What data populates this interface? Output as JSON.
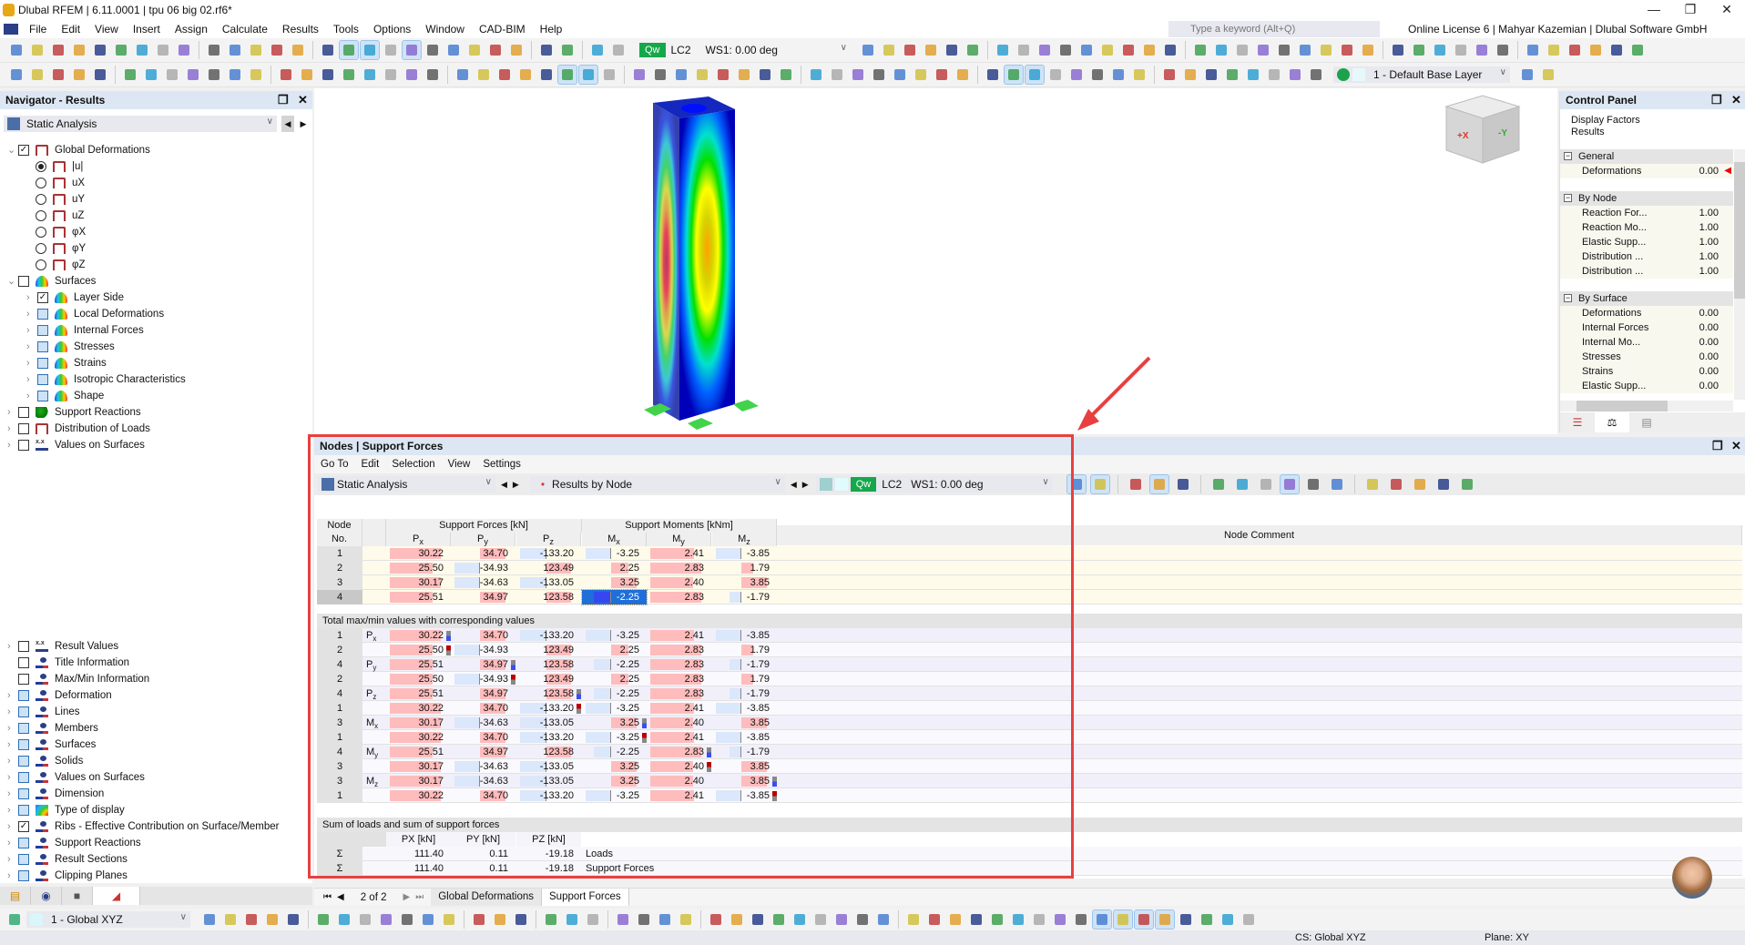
{
  "app": {
    "title": "Dlubal RFEM | 6.11.0001 | tpu 06 big 02.rf6*",
    "search_placeholder": "Type a keyword (Alt+Q)",
    "license": "Online License 6 | Mahyar Kazemian | Dlubal Software GmbH"
  },
  "menu": [
    "File",
    "Edit",
    "View",
    "Insert",
    "Assign",
    "Calculate",
    "Results",
    "Tools",
    "Options",
    "Window",
    "CAD-BIM",
    "Help"
  ],
  "toolbar": {
    "load_tag": "Qw",
    "load_case": "LC2",
    "load_combo": "WS1: 0.00 deg",
    "layer": "1 - Default Base Layer",
    "colors": {
      "qw": "#14a84a",
      "accent": "#1e6fd9",
      "highlight_frame": "#e84040"
    }
  },
  "navigator": {
    "title": "Navigator - Results",
    "analysis": "Static Analysis",
    "items": [
      {
        "label": "Global Deformations",
        "level": 0,
        "exp": "open",
        "check": "checked",
        "icon": "frame"
      },
      {
        "label": "|u|",
        "level": 1,
        "check": "radio-on",
        "icon": "frame"
      },
      {
        "label": "uX",
        "level": 1,
        "check": "radio-off",
        "icon": "frame"
      },
      {
        "label": "uY",
        "level": 1,
        "check": "radio-off",
        "icon": "frame"
      },
      {
        "label": "uZ",
        "level": 1,
        "check": "radio-off",
        "icon": "frame"
      },
      {
        "label": "φX",
        "level": 1,
        "check": "radio-off",
        "icon": "frame"
      },
      {
        "label": "φY",
        "level": 1,
        "check": "radio-off",
        "icon": "frame"
      },
      {
        "label": "φZ",
        "level": 1,
        "check": "radio-off",
        "icon": "frame"
      },
      {
        "label": "Surfaces",
        "level": 0,
        "exp": "open",
        "check": "unchecked",
        "icon": "surf"
      },
      {
        "label": "Layer Side",
        "level": 2,
        "exp": "closed",
        "check": "checked",
        "icon": "surf"
      },
      {
        "label": "Local Deformations",
        "level": 2,
        "exp": "closed",
        "check": "partial",
        "icon": "surf"
      },
      {
        "label": "Internal Forces",
        "level": 2,
        "exp": "closed",
        "check": "partial",
        "icon": "surf"
      },
      {
        "label": "Stresses",
        "level": 2,
        "exp": "closed",
        "check": "partial",
        "icon": "surf"
      },
      {
        "label": "Strains",
        "level": 2,
        "exp": "closed",
        "check": "partial",
        "icon": "surf"
      },
      {
        "label": "Isotropic Characteristics",
        "level": 2,
        "exp": "closed",
        "check": "partial",
        "icon": "surf"
      },
      {
        "label": "Shape",
        "level": 2,
        "exp": "closed",
        "check": "partial",
        "icon": "surf"
      },
      {
        "label": "Support Reactions",
        "level": 0,
        "exp": "closed",
        "check": "unchecked",
        "icon": "sup"
      },
      {
        "label": "Distribution of Loads",
        "level": 0,
        "exp": "closed",
        "check": "unchecked",
        "icon": "frame"
      },
      {
        "label": "Values on Surfaces",
        "level": 0,
        "exp": "closed",
        "check": "unchecked",
        "icon": "xx"
      }
    ],
    "display_items": [
      {
        "label": "Result Values",
        "exp": "closed",
        "check": "unchecked",
        "icon": "xx"
      },
      {
        "label": "Title Information",
        "exp": "none",
        "check": "unchecked",
        "icon": "eye"
      },
      {
        "label": "Max/Min Information",
        "exp": "none",
        "check": "unchecked",
        "icon": "eye"
      },
      {
        "label": "Deformation",
        "exp": "closed",
        "check": "partial",
        "icon": "eye"
      },
      {
        "label": "Lines",
        "exp": "closed",
        "check": "partial",
        "icon": "eye"
      },
      {
        "label": "Members",
        "exp": "closed",
        "check": "partial",
        "icon": "eye"
      },
      {
        "label": "Surfaces",
        "exp": "closed",
        "check": "partial",
        "icon": "eye"
      },
      {
        "label": "Solids",
        "exp": "closed",
        "check": "partial",
        "icon": "eye"
      },
      {
        "label": "Values on Surfaces",
        "exp": "closed",
        "check": "partial",
        "icon": "eye"
      },
      {
        "label": "Dimension",
        "exp": "closed",
        "check": "partial",
        "icon": "eye"
      },
      {
        "label": "Type of display",
        "exp": "closed",
        "check": "partial",
        "icon": "type"
      },
      {
        "label": "Ribs - Effective Contribution on Surface/Member",
        "exp": "closed",
        "check": "checked",
        "icon": "eye"
      },
      {
        "label": "Support Reactions",
        "exp": "closed",
        "check": "partial",
        "icon": "eye"
      },
      {
        "label": "Result Sections",
        "exp": "closed",
        "check": "partial",
        "icon": "eye"
      },
      {
        "label": "Clipping Planes",
        "exp": "closed",
        "check": "partial",
        "icon": "eye"
      }
    ],
    "tabs": [
      "data-icon",
      "eye-icon",
      "video-icon",
      "results-icon"
    ]
  },
  "control_panel": {
    "title": "Control Panel",
    "line1": "Display Factors",
    "line2": "Results",
    "sections": [
      {
        "name": "General",
        "items": [
          {
            "label": "Deformations",
            "value": "0.00"
          }
        ]
      },
      {
        "name": "By Node",
        "items": [
          {
            "label": "Reaction For...",
            "value": "1.00"
          },
          {
            "label": "Reaction Mo...",
            "value": "1.00"
          },
          {
            "label": "Elastic Supp...",
            "value": "1.00"
          },
          {
            "label": "Distribution ...",
            "value": "1.00"
          },
          {
            "label": "Distribution ...",
            "value": "1.00"
          }
        ]
      },
      {
        "name": "By Surface",
        "items": [
          {
            "label": "Deformations",
            "value": "0.00"
          },
          {
            "label": "Internal Forces",
            "value": "0.00"
          },
          {
            "label": "Internal Mo...",
            "value": "0.00"
          },
          {
            "label": "Stresses",
            "value": "0.00"
          },
          {
            "label": "Strains",
            "value": "0.00"
          },
          {
            "label": "Elastic Supp...",
            "value": "0.00"
          }
        ]
      }
    ]
  },
  "results": {
    "title": "Nodes | Support Forces",
    "menu": [
      "Go To",
      "Edit",
      "Selection",
      "View",
      "Settings"
    ],
    "analysis": "Static Analysis",
    "result_type": "Results by Node",
    "load_tag": "Qw",
    "load_case": "LC2",
    "load_combo": "WS1: 0.00 deg",
    "headers": {
      "node": "Node",
      "no": "No.",
      "forces": "Support Forces [kN]",
      "moments": "Support Moments [kNm]",
      "comment": "Node Comment",
      "cols": [
        "Px",
        "Py",
        "Pz",
        "Mx",
        "My",
        "Mz"
      ]
    },
    "rows": [
      {
        "node": "1",
        "v": [
          "30.22",
          "34.70",
          "-133.20",
          "-3.25",
          "2.41",
          "-3.85"
        ]
      },
      {
        "node": "2",
        "v": [
          "25.50",
          "-34.93",
          "123.49",
          "2.25",
          "2.83",
          "1.79"
        ]
      },
      {
        "node": "3",
        "v": [
          "30.17",
          "-34.63",
          "-133.05",
          "3.25",
          "2.40",
          "3.85"
        ]
      },
      {
        "node": "4",
        "v": [
          "25.51",
          "34.97",
          "123.58",
          "-2.25",
          "2.83",
          "-1.79"
        ],
        "selected_col": 3
      }
    ],
    "maxmin_title": "Total max/min values with corresponding values",
    "maxmin_rows": [
      {
        "node": "1",
        "type": "Px",
        "v": [
          "30.22",
          "34.70",
          "-133.20",
          "-3.25",
          "2.41",
          "-3.85"
        ],
        "mark_col": 0,
        "mark": "max"
      },
      {
        "node": "2",
        "type": "",
        "v": [
          "25.50",
          "-34.93",
          "123.49",
          "2.25",
          "2.83",
          "1.79"
        ],
        "mark_col": 0,
        "mark": "min"
      },
      {
        "node": "4",
        "type": "Py",
        "v": [
          "25.51",
          "34.97",
          "123.58",
          "-2.25",
          "2.83",
          "-1.79"
        ],
        "mark_col": 1,
        "mark": "max"
      },
      {
        "node": "2",
        "type": "",
        "v": [
          "25.50",
          "-34.93",
          "123.49",
          "2.25",
          "2.83",
          "1.79"
        ],
        "mark_col": 1,
        "mark": "min"
      },
      {
        "node": "4",
        "type": "Pz",
        "v": [
          "25.51",
          "34.97",
          "123.58",
          "-2.25",
          "2.83",
          "-1.79"
        ],
        "mark_col": 2,
        "mark": "max"
      },
      {
        "node": "1",
        "type": "",
        "v": [
          "30.22",
          "34.70",
          "-133.20",
          "-3.25",
          "2.41",
          "-3.85"
        ],
        "mark_col": 2,
        "mark": "min"
      },
      {
        "node": "3",
        "type": "Mx",
        "v": [
          "30.17",
          "-34.63",
          "-133.05",
          "3.25",
          "2.40",
          "3.85"
        ],
        "mark_col": 3,
        "mark": "max"
      },
      {
        "node": "1",
        "type": "",
        "v": [
          "30.22",
          "34.70",
          "-133.20",
          "-3.25",
          "2.41",
          "-3.85"
        ],
        "mark_col": 3,
        "mark": "min"
      },
      {
        "node": "4",
        "type": "My",
        "v": [
          "25.51",
          "34.97",
          "123.58",
          "-2.25",
          "2.83",
          "-1.79"
        ],
        "mark_col": 4,
        "mark": "max"
      },
      {
        "node": "3",
        "type": "",
        "v": [
          "30.17",
          "-34.63",
          "-133.05",
          "3.25",
          "2.40",
          "3.85"
        ],
        "mark_col": 4,
        "mark": "min"
      },
      {
        "node": "3",
        "type": "Mz",
        "v": [
          "30.17",
          "-34.63",
          "-133.05",
          "3.25",
          "2.40",
          "3.85"
        ],
        "mark_col": 5,
        "mark": "max"
      },
      {
        "node": "1",
        "type": "",
        "v": [
          "30.22",
          "34.70",
          "-133.20",
          "-3.25",
          "2.41",
          "-3.85"
        ],
        "mark_col": 5,
        "mark": "min"
      }
    ],
    "sum_title": "Sum of loads and sum of support forces",
    "sum_headers": [
      "PX [kN]",
      "PY [kN]",
      "PZ [kN]"
    ],
    "sum_rows": [
      {
        "sym": "Σ",
        "v": [
          "111.40",
          "0.11",
          "-19.18"
        ],
        "label": "Loads"
      },
      {
        "sym": "Σ",
        "v": [
          "111.40",
          "0.11",
          "-19.18"
        ],
        "label": "Support Forces"
      }
    ],
    "pager": "2 of 2",
    "tabs": [
      "Global Deformations",
      "Support Forces"
    ],
    "active_tab": 1,
    "colors": {
      "positive_bar": "#ffbcbc",
      "negative_bar": "#dbe7fb",
      "selected": "#1e6fd9"
    }
  },
  "status": {
    "cs_combo": "1 - Global XYZ",
    "cs": "CS: Global XYZ",
    "plane": "Plane: XY"
  }
}
